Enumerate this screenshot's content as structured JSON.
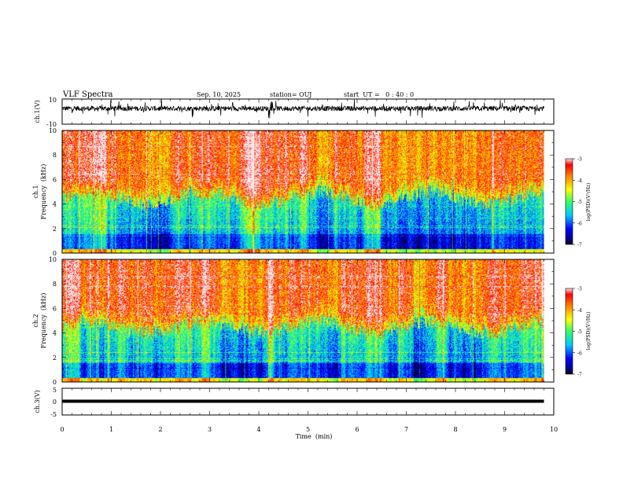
{
  "header": {
    "title": "VLF Spectra",
    "date": "Sep. 10, 2025",
    "station": "station= OUJ",
    "start": "start  UT =   0 : 40 : 0"
  },
  "chart_data": [
    {
      "name": "ch1-waveform",
      "type": "line",
      "ylabel": "ch.1(V)",
      "ylim": [
        -10,
        10
      ],
      "yticklabels": [
        "10",
        "-10"
      ]
    },
    {
      "name": "ch1-spectrogram",
      "type": "heatmap",
      "ylabel": "ch.1\nFrequency  (kHz)",
      "ylabel_line1": "ch.1",
      "ylabel_line2": "Frequency  (kHz)",
      "ylim": [
        0,
        10
      ],
      "yticklabels": [
        "0",
        "2",
        "4",
        "6",
        "8",
        "10"
      ],
      "colorbar": {
        "label": "log(PSD)(V²/Hz)",
        "range": [
          -7,
          -3
        ],
        "ticklabels": [
          "-3",
          "-4",
          "-5",
          "-6",
          "-7"
        ]
      }
    },
    {
      "name": "ch2-spectrogram",
      "type": "heatmap",
      "ylabel_line1": "ch.2",
      "ylabel_line2": "Frequency  (kHz)",
      "ylim": [
        0,
        10
      ],
      "yticklabels": [
        "0",
        "2",
        "4",
        "6",
        "8",
        "10"
      ],
      "colorbar": {
        "label": "log(PSD)(V²/Hz)",
        "range": [
          -7,
          -3
        ],
        "ticklabels": [
          "-3",
          "-4",
          "-5",
          "-6",
          "-7"
        ]
      }
    },
    {
      "name": "ch3-waveform",
      "type": "line",
      "ylabel": "ch.3(V)",
      "ylim": [
        -5,
        5
      ],
      "yticklabels": [
        "5",
        "0",
        "-5"
      ],
      "constant_value": 0
    }
  ],
  "time_axis": {
    "xlabel": "Time  (min)",
    "xlim": [
      0,
      10
    ],
    "data_end": 9.8,
    "ticklabels": [
      "0",
      "1",
      "2",
      "3",
      "4",
      "5",
      "6",
      "7",
      "8",
      "9",
      "10"
    ]
  }
}
